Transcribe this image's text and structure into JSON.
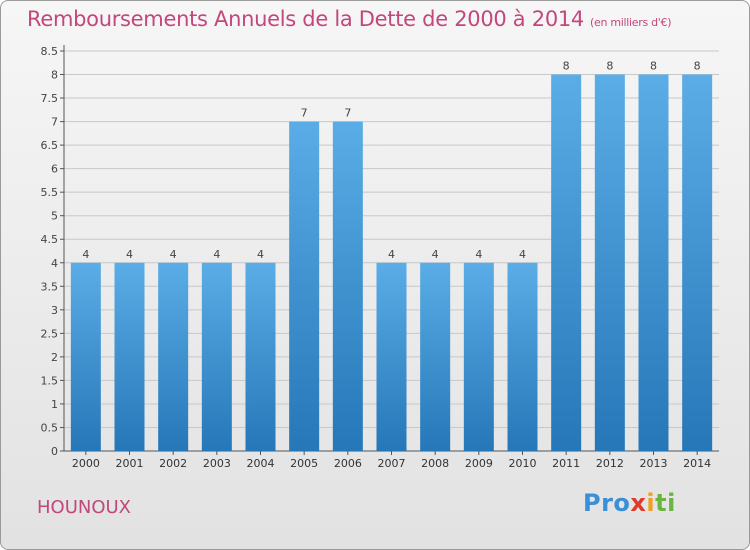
{
  "title": "Remboursements Annuels de la Dette de 2000 à 2014",
  "unit_note": "(en milliers d'€)",
  "commune": "HOUNOUX",
  "logo": {
    "part1": "Pro",
    "part2": "x",
    "part3": "i",
    "part4": "ti"
  },
  "colors": {
    "title": "#c2477d",
    "bar_top": "#5aade6",
    "bar_bottom": "#2677b8",
    "grid": "#c8c8c8"
  },
  "chart_data": {
    "type": "bar",
    "categories": [
      "2000",
      "2001",
      "2002",
      "2003",
      "2004",
      "2005",
      "2006",
      "2007",
      "2008",
      "2009",
      "2010",
      "2011",
      "2012",
      "2013",
      "2014"
    ],
    "values": [
      4,
      4,
      4,
      4,
      4,
      7,
      7,
      4,
      4,
      4,
      4,
      8,
      8,
      8,
      8
    ],
    "data_labels": [
      "4",
      "4",
      "4",
      "4",
      "4",
      "7",
      "7",
      "4",
      "4",
      "4",
      "4",
      "8",
      "8",
      "8",
      "8"
    ],
    "yticks": [
      "0",
      "0.5",
      "1",
      "1.5",
      "2",
      "2.5",
      "3",
      "3.5",
      "4",
      "4.5",
      "5",
      "5.5",
      "6",
      "6.5",
      "7",
      "7.5",
      "8",
      "8.5"
    ],
    "ylim": [
      0,
      8.5
    ],
    "grid": true
  }
}
